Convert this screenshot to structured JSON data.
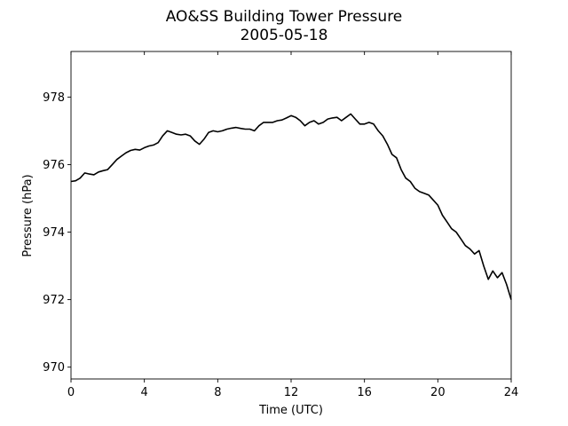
{
  "chart_data": {
    "type": "line",
    "title": "AO&SS Building Tower Pressure",
    "subtitle": "2005-05-18",
    "xlabel": "Time (UTC)",
    "ylabel": "Pressure (hPa)",
    "xlim": [
      0,
      24
    ],
    "ylim": [
      969.65,
      979.35
    ],
    "x_ticks": [
      0,
      4,
      8,
      12,
      16,
      20,
      24
    ],
    "y_ticks": [
      970,
      972,
      974,
      976,
      978
    ],
    "grid": false,
    "line_color": "#000000",
    "series": [
      {
        "x": [
          0.0,
          0.25,
          0.5,
          0.75,
          1.0,
          1.25,
          1.5,
          1.75,
          2.0,
          2.25,
          2.5,
          2.75,
          3.0,
          3.25,
          3.5,
          3.75,
          4.0,
          4.25,
          4.5,
          4.75,
          5.0,
          5.25,
          5.5,
          5.75,
          6.0,
          6.25,
          6.5,
          6.75,
          7.0,
          7.25,
          7.5,
          7.75,
          8.0,
          8.25,
          8.5,
          8.75,
          9.0,
          9.25,
          9.5,
          9.75,
          10.0,
          10.25,
          10.5,
          10.75,
          11.0,
          11.25,
          11.5,
          11.75,
          12.0,
          12.25,
          12.5,
          12.75,
          13.0,
          13.25,
          13.5,
          13.75,
          14.0,
          14.25,
          14.5,
          14.75,
          15.0,
          15.25,
          15.5,
          15.75,
          16.0,
          16.25,
          16.5,
          16.75,
          17.0,
          17.25,
          17.5,
          17.75,
          18.0,
          18.25,
          18.5,
          18.75,
          19.0,
          19.25,
          19.5,
          19.75,
          20.0,
          20.25,
          20.5,
          20.75,
          21.0,
          21.25,
          21.5,
          21.75,
          22.0,
          22.25,
          22.5,
          22.75,
          23.0,
          23.25,
          23.5,
          23.75,
          24.0
        ],
        "values": [
          975.5,
          975.52,
          975.6,
          975.75,
          975.72,
          975.7,
          975.78,
          975.82,
          975.85,
          976.0,
          976.15,
          976.25,
          976.35,
          976.42,
          976.45,
          976.43,
          976.5,
          976.55,
          976.58,
          976.65,
          976.85,
          977.0,
          976.95,
          976.9,
          976.88,
          976.9,
          976.85,
          976.7,
          976.6,
          976.75,
          976.95,
          977.0,
          976.97,
          977.0,
          977.05,
          977.08,
          977.1,
          977.07,
          977.05,
          977.05,
          977.0,
          977.15,
          977.25,
          977.25,
          977.25,
          977.3,
          977.32,
          977.38,
          977.45,
          977.4,
          977.3,
          977.15,
          977.25,
          977.3,
          977.2,
          977.25,
          977.35,
          977.38,
          977.4,
          977.3,
          977.4,
          977.5,
          977.35,
          977.2,
          977.2,
          977.25,
          977.2,
          977.0,
          976.85,
          976.6,
          976.3,
          976.2,
          975.85,
          975.6,
          975.5,
          975.3,
          975.2,
          975.15,
          975.1,
          974.95,
          974.8,
          974.5,
          974.3,
          974.1,
          974.0,
          973.8,
          973.6,
          973.5,
          973.35,
          973.45,
          973.0,
          972.6,
          972.85,
          972.65,
          972.8,
          972.45,
          972.0
        ]
      }
    ]
  }
}
